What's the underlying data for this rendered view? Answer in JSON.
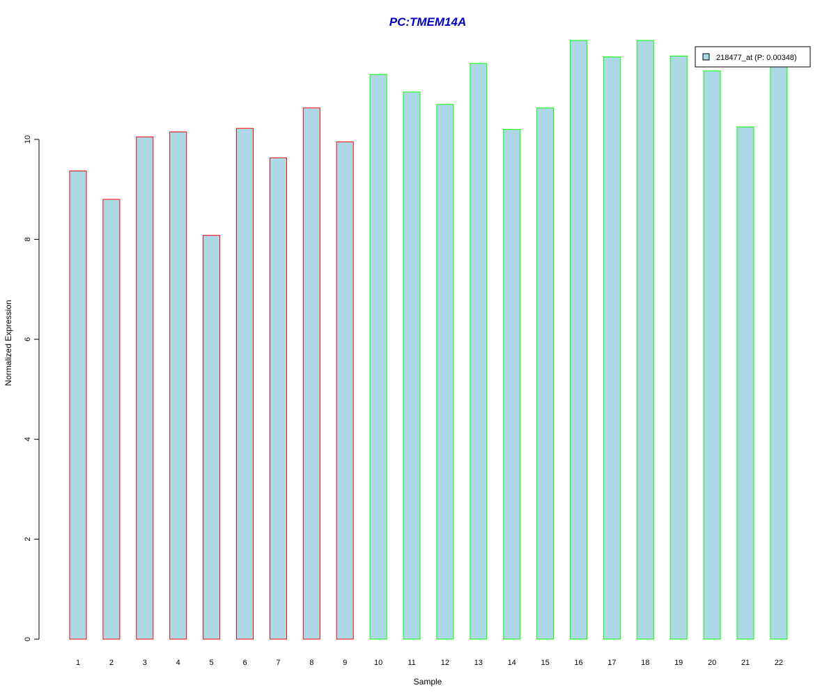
{
  "chart_data": {
    "type": "bar",
    "title": "PC:TMEM14A",
    "xlabel": "Sample",
    "ylabel": "Normalized Expression",
    "categories": [
      "1",
      "2",
      "3",
      "4",
      "5",
      "6",
      "7",
      "8",
      "9",
      "10",
      "11",
      "12",
      "13",
      "14",
      "15",
      "16",
      "17",
      "18",
      "19",
      "20",
      "21",
      "22"
    ],
    "series": [
      {
        "name": "218477_at (P: 0.00348)",
        "values": [
          9.37,
          8.8,
          10.05,
          10.15,
          8.08,
          10.22,
          9.63,
          10.63,
          9.95,
          11.3,
          10.95,
          10.7,
          11.52,
          10.2,
          10.63,
          11.98,
          11.65,
          11.98,
          11.67,
          11.37,
          10.25,
          11.6
        ]
      }
    ],
    "bar_fill": "#ADD8E6",
    "group_border_colors": [
      "#FF0000",
      "#FF0000",
      "#FF0000",
      "#FF0000",
      "#FF0000",
      "#FF0000",
      "#FF0000",
      "#FF0000",
      "#FF0000",
      "#00FF00",
      "#00FF00",
      "#00FF00",
      "#00FF00",
      "#00FF00",
      "#00FF00",
      "#00FF00",
      "#00FF00",
      "#00FF00",
      "#00FF00",
      "#00FF00",
      "#00FF00",
      "#00FF00"
    ],
    "title_color": "#0000CC",
    "ylim": [
      0,
      12
    ],
    "yticks": [
      0,
      2,
      4,
      6,
      8,
      10
    ],
    "grid": false,
    "legend_position": "top-right"
  }
}
